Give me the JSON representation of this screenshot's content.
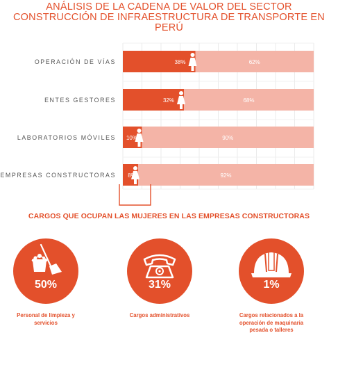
{
  "header": {
    "title_line1": "ANÁLISIS DE LA CADENA DE VALOR DEL SECTOR",
    "title_line2": "CONSTRUCCIÓN DE INFRAESTRUCTURA DE TRANSPORTE EN PERÚ"
  },
  "colors": {
    "accent": "#e3502b",
    "women_bar": "#e3502b",
    "men_bar": "#f4b4a7",
    "circle": "#e3502b"
  },
  "chart_data": {
    "type": "bar",
    "orientation": "horizontal",
    "stacked": true,
    "categories": [
      "OPERACIÓN DE VÍAS",
      "ENTES GESTORES",
      "LABORATORIOS MÓVILES",
      "EMPRESAS CONSTRUCTORAS"
    ],
    "series": [
      {
        "values": [
          38,
          32,
          10,
          8
        ],
        "labels": [
          "38%",
          "32%",
          "10%",
          "8%"
        ]
      },
      {
        "values": [
          62,
          68,
          90,
          92
        ],
        "labels": [
          "62%",
          "68%",
          "90%",
          "92%"
        ]
      }
    ],
    "xlim": [
      0,
      100
    ],
    "grid": true,
    "icon": "woman-icon"
  },
  "roles": {
    "title": "CARGOS QUE OCUPAN LAS MUJERES EN LAS EMPRESAS CONSTRUCTORAS",
    "items": [
      {
        "icon": "broom-bucket-icon",
        "value": "50%",
        "caption_line1": "Personal de limpieza y",
        "caption_line2": "servicios",
        "caption_line3": ""
      },
      {
        "icon": "telephone-icon",
        "value": "31%",
        "caption_line1": "Cargos administrativos",
        "caption_line2": "",
        "caption_line3": ""
      },
      {
        "icon": "hard-hat-icon",
        "value": "1%",
        "caption_line1": "Cargos relacionados a la",
        "caption_line2": "operación de maquinaria",
        "caption_line3": "pesada o talleres"
      }
    ]
  }
}
